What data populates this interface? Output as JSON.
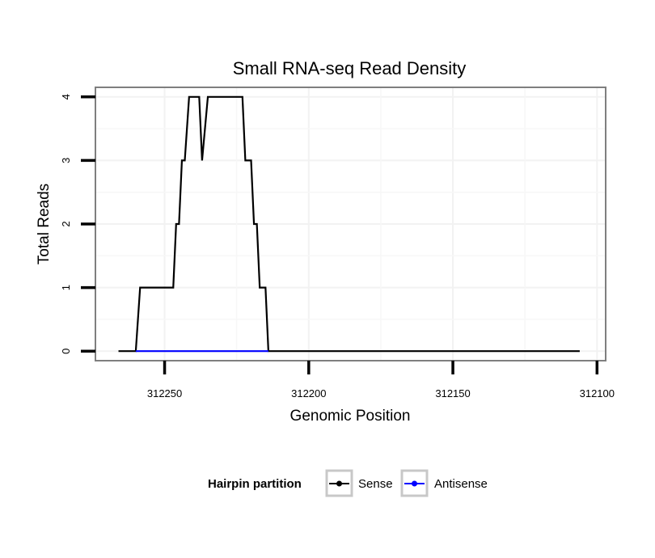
{
  "chart_data": {
    "type": "line",
    "title": "Small RNA-seq Read Density",
    "xlabel": "Genomic Position",
    "ylabel": "Total Reads",
    "xlim": [
      312274,
      312097
    ],
    "x_reversed": true,
    "ylim": [
      -0.15,
      4.15
    ],
    "xticks": [
      312250,
      312200,
      312150,
      312100
    ],
    "yticks": [
      0,
      1,
      2,
      3,
      4
    ],
    "xtick_labels": [
      "312250",
      "312200",
      "312150",
      "312100"
    ],
    "ytick_labels": [
      "0",
      "1",
      "2",
      "3",
      "4"
    ],
    "grid": true,
    "legend": {
      "title": "Hairpin partition",
      "position": "bottom",
      "entries": [
        "Sense",
        "Antisense"
      ]
    },
    "series": [
      {
        "name": "Sense",
        "color": "#000000",
        "points": [
          [
            312266,
            0
          ],
          [
            312260,
            0
          ],
          [
            312258.5,
            1
          ],
          [
            312247,
            1
          ],
          [
            312246,
            2
          ],
          [
            312245,
            2
          ],
          [
            312244,
            3
          ],
          [
            312243,
            3
          ],
          [
            312241.5,
            4
          ],
          [
            312238,
            4
          ],
          [
            312237,
            3
          ],
          [
            312235,
            4
          ],
          [
            312223,
            4
          ],
          [
            312222,
            3
          ],
          [
            312220,
            3
          ],
          [
            312219,
            2
          ],
          [
            312218,
            2
          ],
          [
            312217,
            1
          ],
          [
            312215,
            1
          ],
          [
            312214,
            0
          ],
          [
            312106,
            0
          ]
        ]
      },
      {
        "name": "Antisense",
        "color": "#0000ff",
        "points": [
          [
            312260,
            0
          ],
          [
            312214,
            0
          ]
        ]
      }
    ]
  }
}
